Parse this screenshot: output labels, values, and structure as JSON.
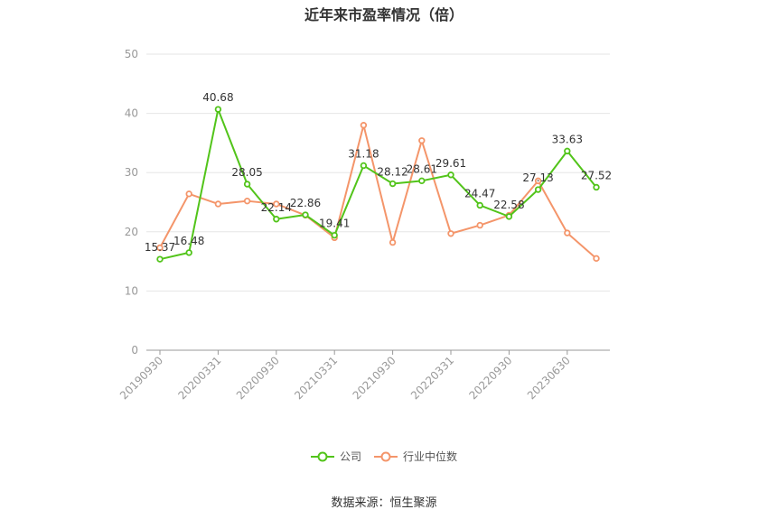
{
  "chart_data": {
    "type": "line",
    "title": "近年来市盈率情况（倍）",
    "x_tick_labels": [
      "20190930",
      "20200331",
      "20200930",
      "20210331",
      "20210930",
      "20220331",
      "20220930",
      "20230630"
    ],
    "x": [
      "20190930",
      "20191231",
      "20200331",
      "20200630",
      "20200930",
      "20201231",
      "20210331",
      "20210630",
      "20210930",
      "20211231",
      "20220331",
      "20220630",
      "20220930",
      "20221231",
      "20230630",
      "20230930"
    ],
    "ylim": [
      0,
      50
    ],
    "yticks": [
      0,
      10,
      20,
      30,
      40,
      50
    ],
    "grid": true,
    "legend_position": "bottom",
    "series": [
      {
        "name": "公司",
        "color": "#52c41a",
        "values": [
          15.37,
          16.48,
          40.68,
          28.05,
          22.14,
          22.86,
          19.41,
          31.18,
          28.12,
          28.61,
          29.61,
          24.47,
          22.58,
          27.13,
          33.63,
          27.52
        ],
        "labels": [
          "15.37",
          "16.48",
          "40.68",
          "28.05",
          "22.14",
          "22.86",
          "19.41",
          "31.18",
          "28.12",
          "28.61",
          "29.61",
          "24.47",
          "22.58",
          "27.13",
          "33.63",
          "27.52"
        ]
      },
      {
        "name": "行业中位数",
        "color": "#f4956a",
        "values": [
          17.3,
          26.4,
          24.7,
          25.2,
          24.7,
          22.8,
          19.0,
          38.0,
          18.2,
          35.4,
          19.7,
          21.1,
          22.8,
          28.6,
          19.8,
          15.5
        ]
      }
    ]
  },
  "source": "数据来源：恒生聚源"
}
